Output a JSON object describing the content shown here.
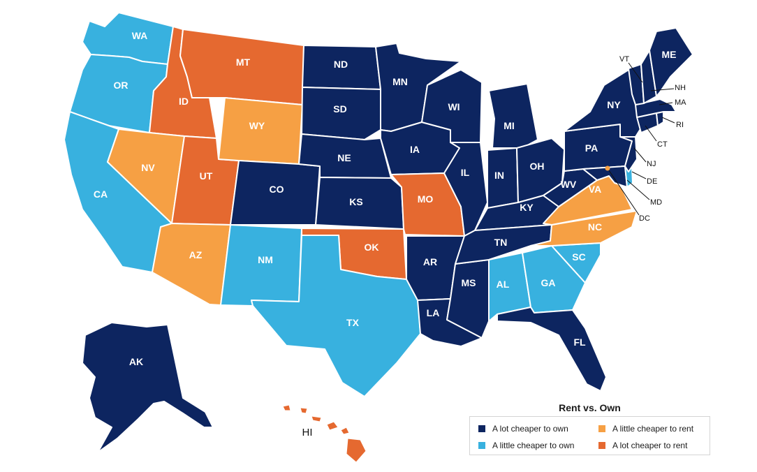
{
  "title": "Rent vs. Own",
  "colors": {
    "lot_own": "#0d2560",
    "little_own": "#38b1df",
    "little_rent": "#f6a044",
    "lot_rent": "#e56930"
  },
  "legend": [
    {
      "label": "A lot cheaper to own",
      "category": "lot_own"
    },
    {
      "label": "A little cheaper to own",
      "category": "little_own"
    },
    {
      "label": "A little cheaper to rent",
      "category": "little_rent"
    },
    {
      "label": "A lot cheaper to rent",
      "category": "lot_rent"
    }
  ],
  "states": [
    {
      "abbr": "WA",
      "category": "little_own"
    },
    {
      "abbr": "OR",
      "category": "little_own"
    },
    {
      "abbr": "CA",
      "category": "little_own"
    },
    {
      "abbr": "ID",
      "category": "lot_rent"
    },
    {
      "abbr": "MT",
      "category": "lot_rent"
    },
    {
      "abbr": "NV",
      "category": "little_rent"
    },
    {
      "abbr": "UT",
      "category": "lot_rent"
    },
    {
      "abbr": "AZ",
      "category": "little_rent"
    },
    {
      "abbr": "WY",
      "category": "little_rent"
    },
    {
      "abbr": "CO",
      "category": "lot_own"
    },
    {
      "abbr": "NM",
      "category": "little_own"
    },
    {
      "abbr": "ND",
      "category": "lot_own"
    },
    {
      "abbr": "SD",
      "category": "lot_own"
    },
    {
      "abbr": "NE",
      "category": "lot_own"
    },
    {
      "abbr": "KS",
      "category": "lot_own"
    },
    {
      "abbr": "OK",
      "category": "lot_rent"
    },
    {
      "abbr": "TX",
      "category": "little_own"
    },
    {
      "abbr": "MN",
      "category": "lot_own"
    },
    {
      "abbr": "IA",
      "category": "lot_own"
    },
    {
      "abbr": "MO",
      "category": "lot_rent"
    },
    {
      "abbr": "AR",
      "category": "lot_own"
    },
    {
      "abbr": "LA",
      "category": "lot_own"
    },
    {
      "abbr": "WI",
      "category": "lot_own"
    },
    {
      "abbr": "IL",
      "category": "lot_own"
    },
    {
      "abbr": "MS",
      "category": "lot_own"
    },
    {
      "abbr": "MI",
      "category": "lot_own"
    },
    {
      "abbr": "IN",
      "category": "lot_own"
    },
    {
      "abbr": "OH",
      "category": "lot_own"
    },
    {
      "abbr": "KY",
      "category": "lot_own"
    },
    {
      "abbr": "TN",
      "category": "lot_own"
    },
    {
      "abbr": "AL",
      "category": "little_own"
    },
    {
      "abbr": "GA",
      "category": "little_own"
    },
    {
      "abbr": "FL",
      "category": "lot_own"
    },
    {
      "abbr": "SC",
      "category": "little_own"
    },
    {
      "abbr": "NC",
      "category": "little_rent"
    },
    {
      "abbr": "VA",
      "category": "little_rent"
    },
    {
      "abbr": "WV",
      "category": "lot_own"
    },
    {
      "abbr": "PA",
      "category": "lot_own"
    },
    {
      "abbr": "NY",
      "category": "lot_own"
    },
    {
      "abbr": "ME",
      "category": "lot_own"
    },
    {
      "abbr": "VT",
      "category": "lot_own"
    },
    {
      "abbr": "NH",
      "category": "lot_own"
    },
    {
      "abbr": "MA",
      "category": "lot_own"
    },
    {
      "abbr": "RI",
      "category": "lot_own"
    },
    {
      "abbr": "CT",
      "category": "lot_own"
    },
    {
      "abbr": "NJ",
      "category": "lot_own"
    },
    {
      "abbr": "DE",
      "category": "little_own"
    },
    {
      "abbr": "MD",
      "category": "lot_own"
    },
    {
      "abbr": "DC",
      "category": "little_rent"
    },
    {
      "abbr": "AK",
      "category": "lot_own"
    },
    {
      "abbr": "HI",
      "category": "lot_rent"
    }
  ]
}
